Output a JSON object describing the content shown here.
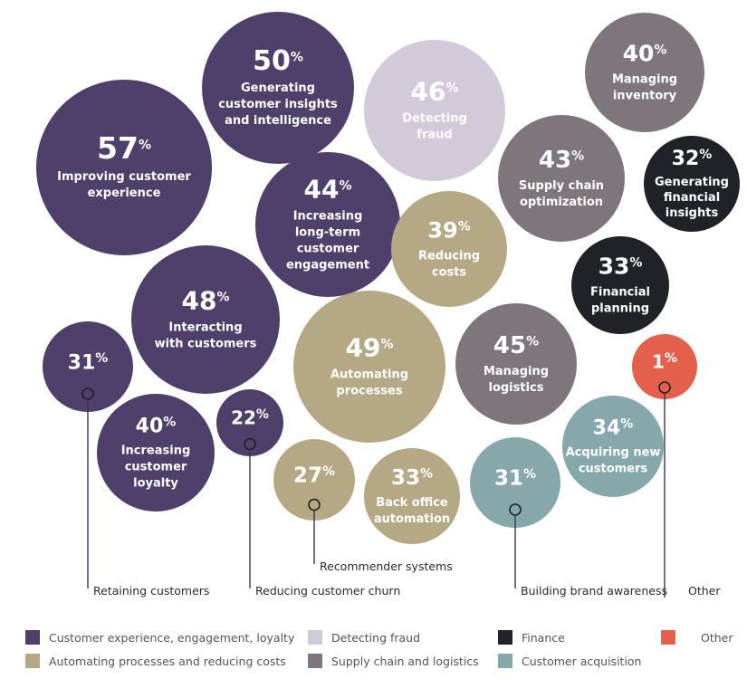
{
  "chart_data": {
    "type": "bubble",
    "colors": {
      "cx": "#4f3f6b",
      "fraud": "#d3cad9",
      "finance": "#202228",
      "other": "#e4604d",
      "auto": "#b4a885",
      "supply": "#7f767d",
      "acq": "#86a8ab"
    },
    "bubbles": [
      {
        "value": 57,
        "pct": "57",
        "label": [
          "Improving customer",
          "experience"
        ],
        "category": "cx"
      },
      {
        "value": 50,
        "pct": "50",
        "label": [
          "Generating",
          "customer insights",
          "and intelligence"
        ],
        "category": "cx"
      },
      {
        "value": 46,
        "pct": "46",
        "label": [
          "Detecting",
          "fraud"
        ],
        "category": "fraud"
      },
      {
        "value": 40,
        "pct": "40",
        "label": [
          "Managing",
          "inventory"
        ],
        "category": "supply"
      },
      {
        "value": 43,
        "pct": "43",
        "label": [
          "Supply chain",
          "optimization"
        ],
        "category": "supply"
      },
      {
        "value": 32,
        "pct": "32",
        "label": [
          "Generating",
          "financial",
          "insights"
        ],
        "category": "finance"
      },
      {
        "value": 44,
        "pct": "44",
        "label": [
          "Increasing",
          "long-term",
          "customer",
          "engagement"
        ],
        "category": "cx"
      },
      {
        "value": 39,
        "pct": "39",
        "label": [
          "Reducing",
          "costs"
        ],
        "category": "auto"
      },
      {
        "value": 33,
        "pct": "33",
        "label": [
          "Financial",
          "planning"
        ],
        "category": "finance"
      },
      {
        "value": 48,
        "pct": "48",
        "label": [
          "Interacting",
          "with customers"
        ],
        "category": "cx"
      },
      {
        "value": 49,
        "pct": "49",
        "label": [
          "Automating",
          "processes"
        ],
        "category": "auto"
      },
      {
        "value": 45,
        "pct": "45",
        "label": [
          "Managing",
          "logistics"
        ],
        "category": "supply"
      },
      {
        "value": 1,
        "pct": "1",
        "label": [],
        "category": "other",
        "callout": "Other"
      },
      {
        "value": 31,
        "pct": "31",
        "label": [],
        "category": "cx",
        "callout": "Retaining customers"
      },
      {
        "value": 40,
        "pct": "40",
        "label": [
          "Increasing",
          "customer",
          "loyalty"
        ],
        "category": "cx"
      },
      {
        "value": 22,
        "pct": "22",
        "label": [],
        "category": "cx",
        "callout": "Reducing customer churn"
      },
      {
        "value": 27,
        "pct": "27",
        "label": [],
        "category": "auto",
        "callout": "Recommender systems"
      },
      {
        "value": 33,
        "pct": "33",
        "label": [
          "Back office",
          "automation"
        ],
        "category": "auto"
      },
      {
        "value": 31,
        "pct": "31",
        "label": [],
        "category": "acq",
        "callout": "Building brand awareness"
      },
      {
        "value": 34,
        "pct": "34",
        "label": [
          "Acquiring new",
          "customers"
        ],
        "category": "acq"
      }
    ],
    "legend": [
      {
        "label": "Customer experience, engagement, loyalty",
        "category": "cx"
      },
      {
        "label": "Detecting fraud",
        "category": "fraud"
      },
      {
        "label": "Finance",
        "category": "finance"
      },
      {
        "label": "Other",
        "category": "other"
      },
      {
        "label": "Automating processes and reducing costs",
        "category": "auto"
      },
      {
        "label": "Supply chain and logistics",
        "category": "supply"
      },
      {
        "label": "Customer acquisition",
        "category": "acq"
      }
    ],
    "percent_symbol": "%"
  }
}
